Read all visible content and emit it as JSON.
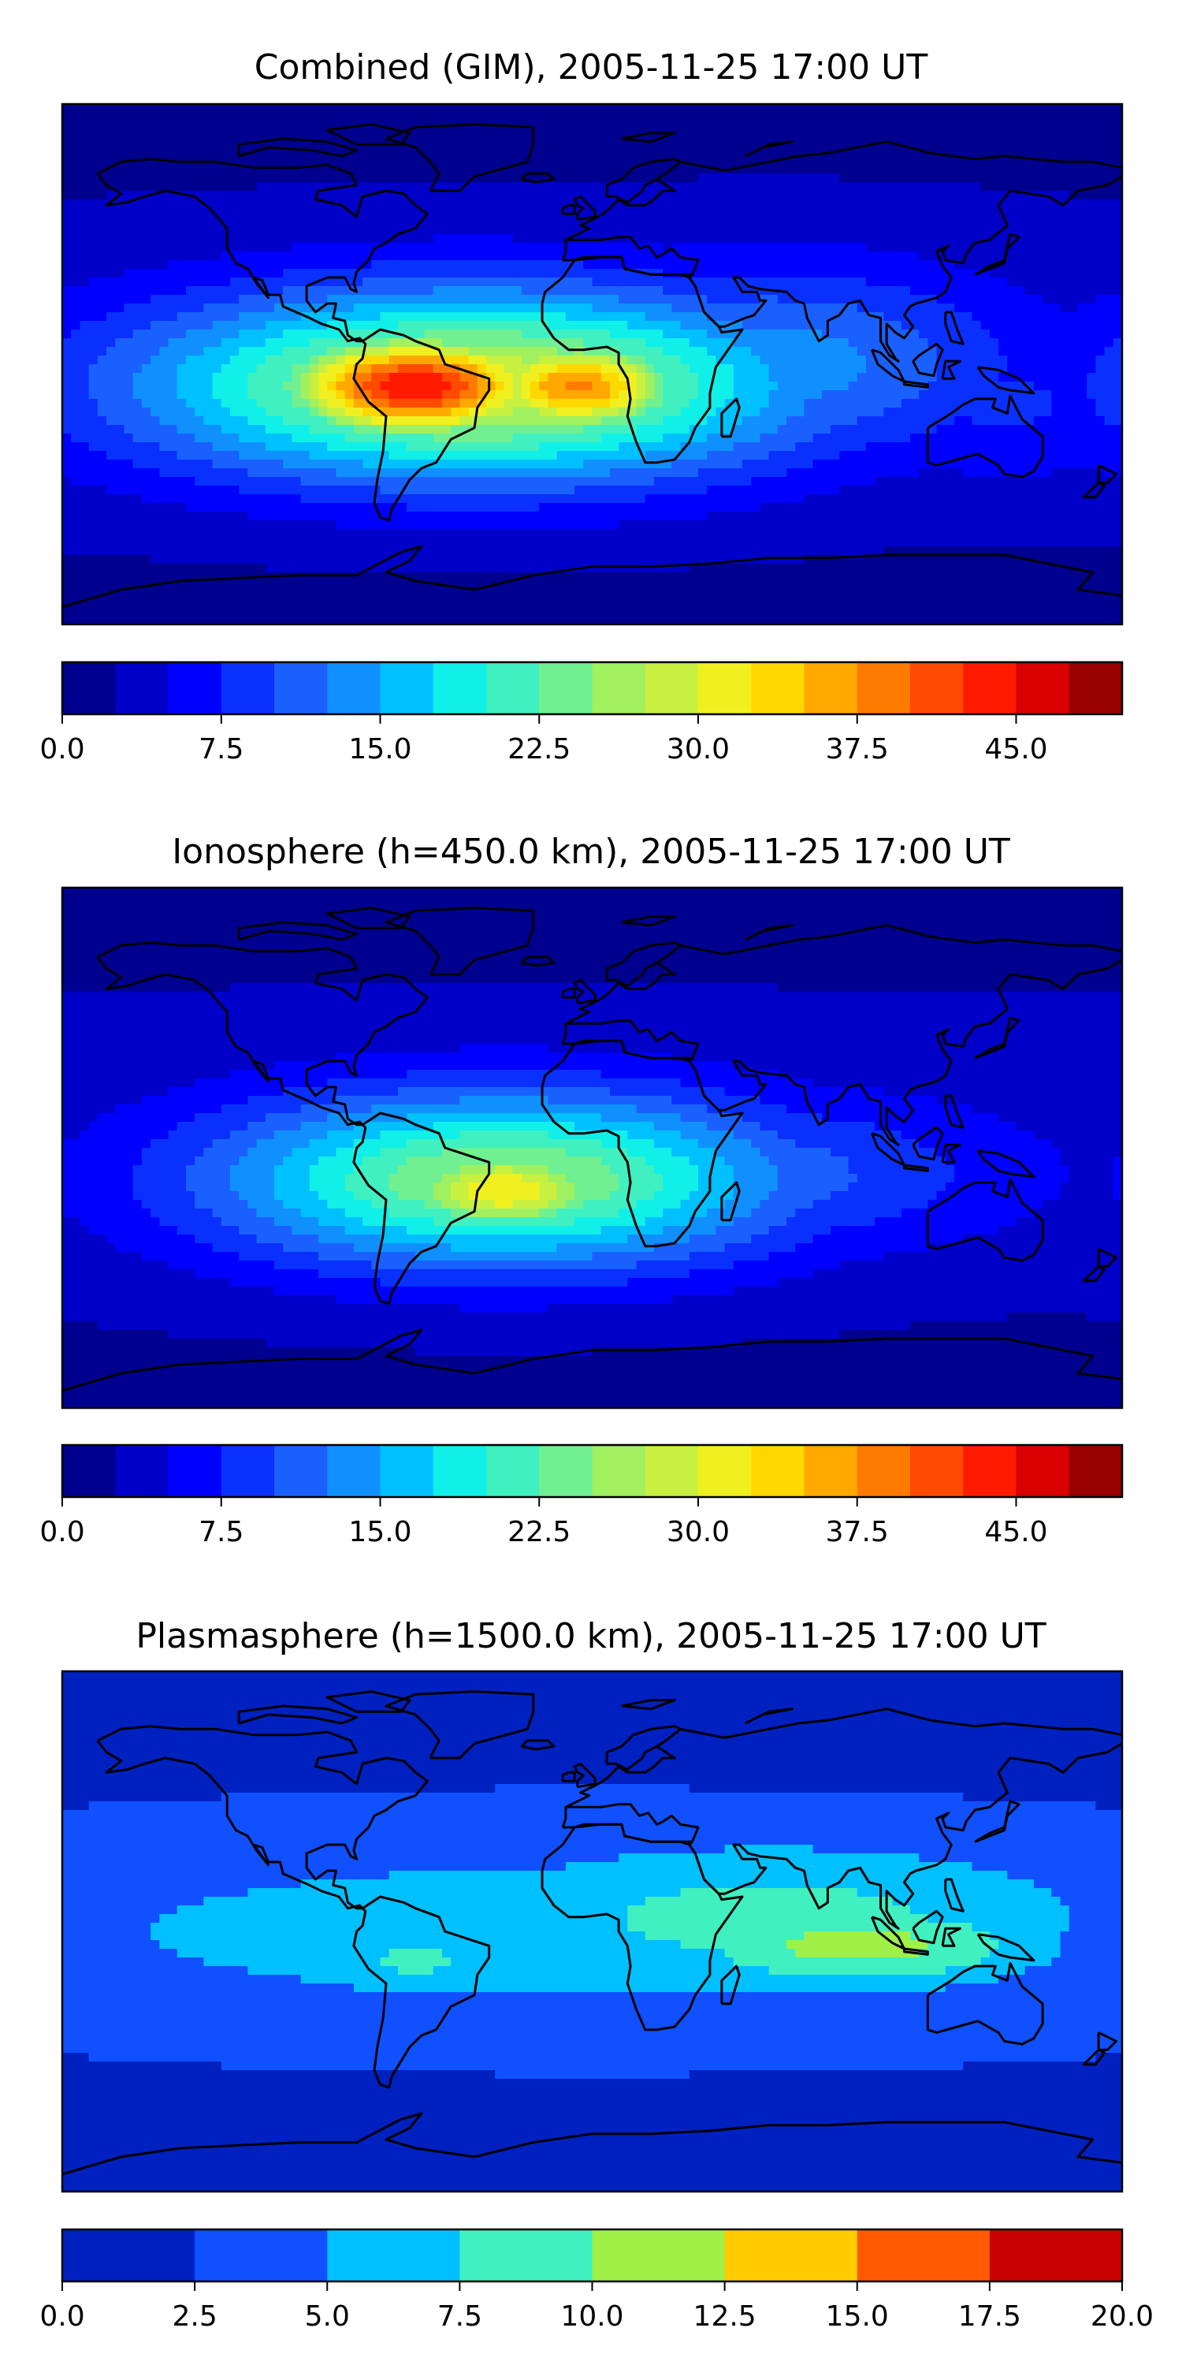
{
  "chart_data": [
    {
      "type": "heatmap",
      "title": "Combined (GIM), 2005-11-25 17:00 UT",
      "colorbar": {
        "ticks": [
          "0.0",
          "7.5",
          "15.0",
          "22.5",
          "30.0",
          "37.5",
          "45.0"
        ],
        "range": [
          0,
          50
        ],
        "levels": 20,
        "colors": [
          "#00008f",
          "#0000c8",
          "#0000ff",
          "#0a30ff",
          "#1a60ff",
          "#1090ff",
          "#00c0ff",
          "#10f0e8",
          "#40f0c0",
          "#70f090",
          "#a0f060",
          "#c8f040",
          "#f0f020",
          "#ffd800",
          "#ffa800",
          "#ff7a00",
          "#ff4a00",
          "#ff1a00",
          "#d80000",
          "#980000"
        ]
      },
      "fields": [
        {
          "lon": -60,
          "lat": -8,
          "value": 45,
          "spread_lon": 35,
          "spread_lat": 14
        },
        {
          "lon": -5,
          "lat": -8,
          "value": 38,
          "spread_lon": 28,
          "spread_lat": 13
        },
        {
          "lon": -40,
          "lat": -8,
          "value": 30,
          "spread_lon": 80,
          "spread_lat": 24
        },
        {
          "lon": 60,
          "lat": 0,
          "value": 14,
          "spread_lon": 60,
          "spread_lat": 25
        },
        {
          "lon": 140,
          "lat": -15,
          "value": 8,
          "spread_lon": 40,
          "spread_lat": 20
        }
      ],
      "base_value": 3
    },
    {
      "type": "heatmap",
      "title": "Ionosphere  (h=450.0 km), 2005-11-25 17:00 UT",
      "colorbar": {
        "ticks": [
          "0.0",
          "7.5",
          "15.0",
          "22.5",
          "30.0",
          "37.5",
          "45.0"
        ],
        "range": [
          0,
          50
        ],
        "levels": 20,
        "colors": [
          "#00008f",
          "#0000c8",
          "#0000ff",
          "#0a30ff",
          "#1a60ff",
          "#1090ff",
          "#00c0ff",
          "#10f0e8",
          "#40f0c0",
          "#70f090",
          "#a0f060",
          "#c8f040",
          "#f0f020",
          "#ffd800",
          "#ffa800",
          "#ff7a00",
          "#ff4a00",
          "#ff1a00",
          "#d80000",
          "#980000"
        ]
      },
      "fields": [
        {
          "lon": -30,
          "lat": -15,
          "value": 33,
          "spread_lon": 30,
          "spread_lat": 12
        },
        {
          "lon": -30,
          "lat": -12,
          "value": 26,
          "spread_lon": 70,
          "spread_lat": 22
        },
        {
          "lon": 40,
          "lat": -10,
          "value": 12,
          "spread_lon": 70,
          "spread_lat": 20
        }
      ],
      "base_value": 3
    },
    {
      "type": "heatmap",
      "title": "Plasmasphere (h=1500.0 km), 2005-11-25 17:00 UT",
      "colorbar": {
        "ticks": [
          "0.0",
          "2.5",
          "5.0",
          "7.5",
          "10.0",
          "12.5",
          "15.0",
          "17.5",
          "20.0"
        ],
        "range": [
          0,
          20
        ],
        "levels": 8,
        "colors": [
          "#0020c0",
          "#1050ff",
          "#00c0ff",
          "#40f0c0",
          "#a0f048",
          "#ffcc00",
          "#ff5a00",
          "#c80000"
        ]
      },
      "fields": [
        {
          "lon": 90,
          "lat": -5,
          "value": 11,
          "spread_lon": 50,
          "spread_lat": 12
        },
        {
          "lon": 60,
          "lat": 5,
          "value": 8.5,
          "spread_lon": 90,
          "spread_lat": 22
        },
        {
          "lon": -60,
          "lat": -10,
          "value": 8,
          "spread_lon": 30,
          "spread_lat": 12
        },
        {
          "lon": 0,
          "lat": 0,
          "value": 6,
          "spread_lon": 220,
          "spread_lat": 35
        }
      ],
      "base_value": 1.2
    }
  ]
}
